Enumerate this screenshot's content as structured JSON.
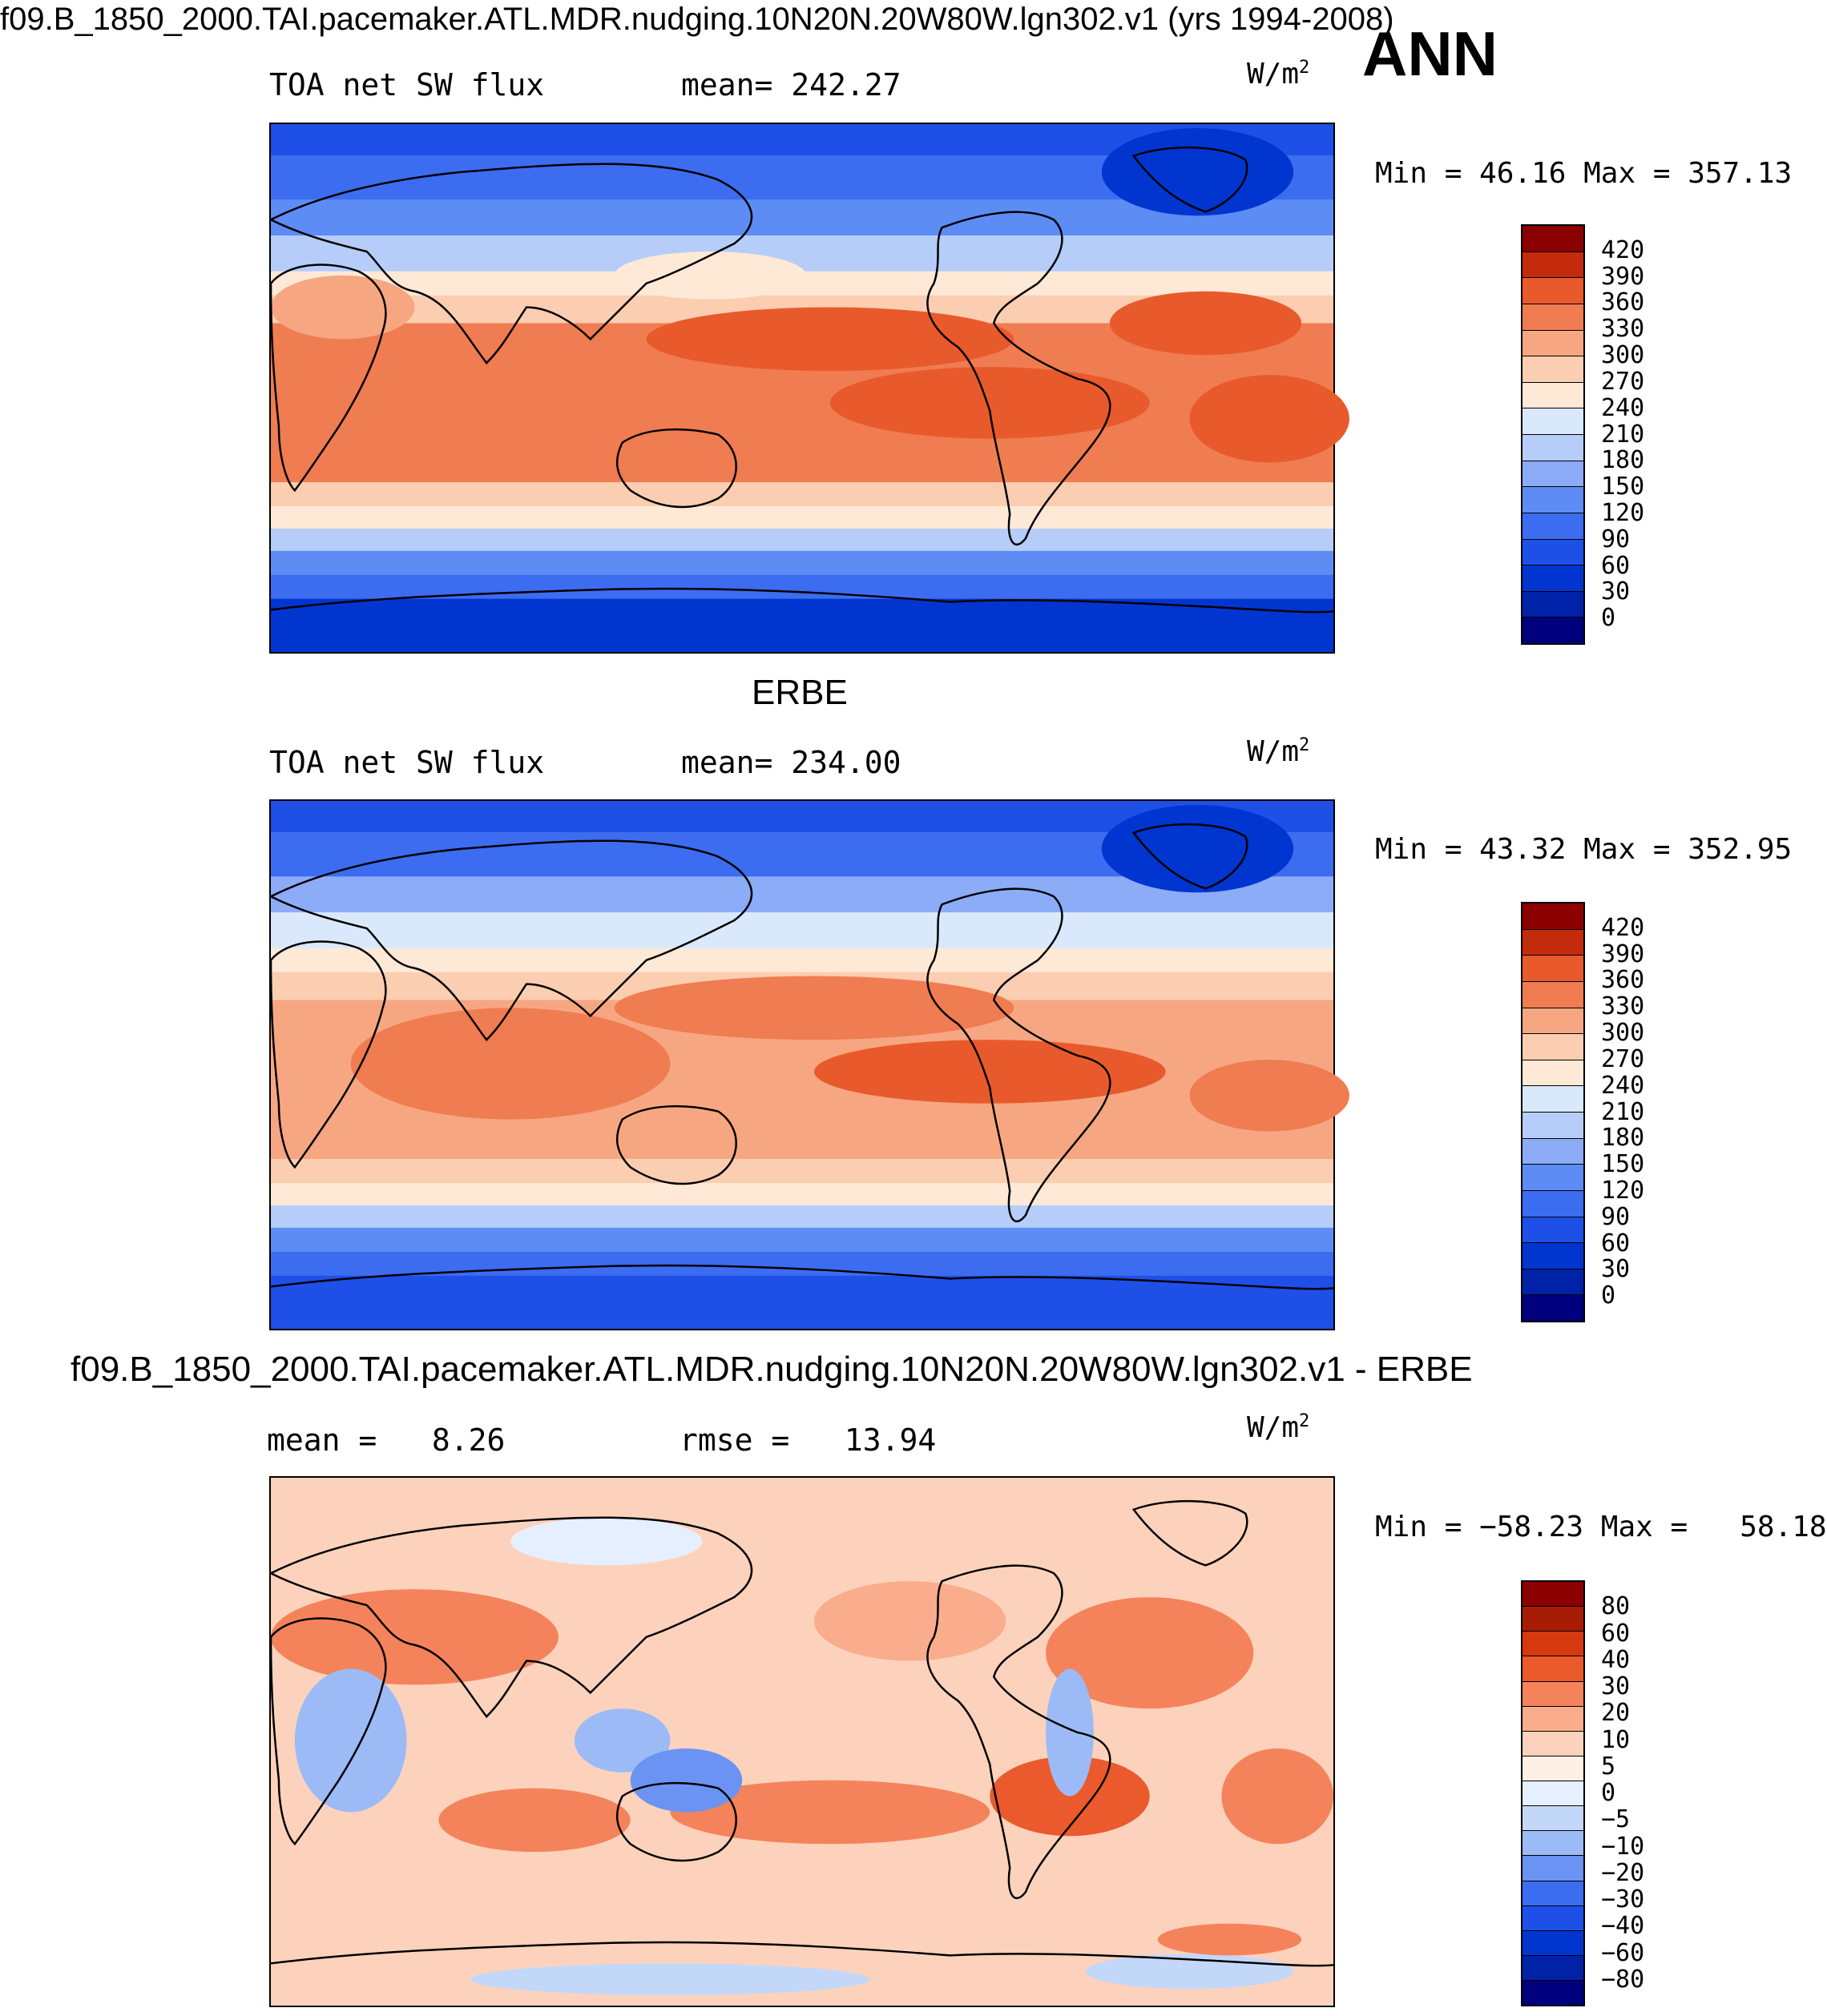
{
  "header": {
    "title": "f09.B_1850_2000.TAI.pacemaker.ATL.MDR.nudging.10N20N.20W80W.lgn302.v1 (yrs 1994-2008)",
    "season": "ANN"
  },
  "colors": {
    "full_field": [
      "#00007f",
      "#0022a8",
      "#0035d0",
      "#1e50e8",
      "#3c6cf0",
      "#5e8cf5",
      "#8cacf7",
      "#b5cdf8",
      "#d9e8fb",
      "#fde9d6",
      "#fbcdb1",
      "#f6a782",
      "#f07c52",
      "#e85a2c",
      "#c42b0d",
      "#8b0000"
    ],
    "diff_field": [
      "#00007f",
      "#0022a8",
      "#0035d0",
      "#1e50e8",
      "#3c6cf0",
      "#6b93f3",
      "#9cbaf6",
      "#c3d8f9",
      "#e6efff",
      "#fff0e5",
      "#fdd2bc",
      "#f9ad8c",
      "#f4835b",
      "#ea5a2c",
      "#d6380f",
      "#a81c05",
      "#8b0000"
    ]
  },
  "chart_data": [
    {
      "type": "heatmap",
      "title": "f09.B_1850_2000.TAI.pacemaker.ATL.MDR.nudging.10N20N.20W80W.lgn302.v1 (yrs 1994-2008)",
      "variable": "TOA net SW flux",
      "mean_label": "mean=",
      "mean": "242.27",
      "units": "W/m",
      "units_exp": "2",
      "min_label": "Min =",
      "min": "46.16",
      "max_label": "Max =",
      "max": "357.13",
      "levels": [
        "420",
        "390",
        "360",
        "330",
        "300",
        "270",
        "240",
        "210",
        "180",
        "150",
        "120",
        "90",
        "60",
        "30",
        "0"
      ]
    },
    {
      "type": "heatmap",
      "title": "ERBE",
      "variable": "TOA net SW flux",
      "mean_label": "mean=",
      "mean": "234.00",
      "units": "W/m",
      "units_exp": "2",
      "min_label": "Min =",
      "min": "43.32",
      "max_label": "Max =",
      "max": "352.95",
      "levels": [
        "420",
        "390",
        "360",
        "330",
        "300",
        "270",
        "240",
        "210",
        "180",
        "150",
        "120",
        "90",
        "60",
        "30",
        "0"
      ]
    },
    {
      "type": "heatmap",
      "title": "f09.B_1850_2000.TAI.pacemaker.ATL.MDR.nudging.10N20N.20W80W.lgn302.v1 - ERBE",
      "mean_label": "mean =",
      "mean": "8.26",
      "rmse_label": "rmse =",
      "rmse": "13.94",
      "units": "W/m",
      "units_exp": "2",
      "min_label": "Min =",
      "min": "−58.23",
      "max_label": "Max =",
      "max": "58.18",
      "levels": [
        "80",
        "60",
        "40",
        "30",
        "20",
        "10",
        "5",
        "0",
        "−5",
        "−10",
        "−20",
        "−30",
        "−40",
        "−60",
        "−80"
      ]
    }
  ]
}
